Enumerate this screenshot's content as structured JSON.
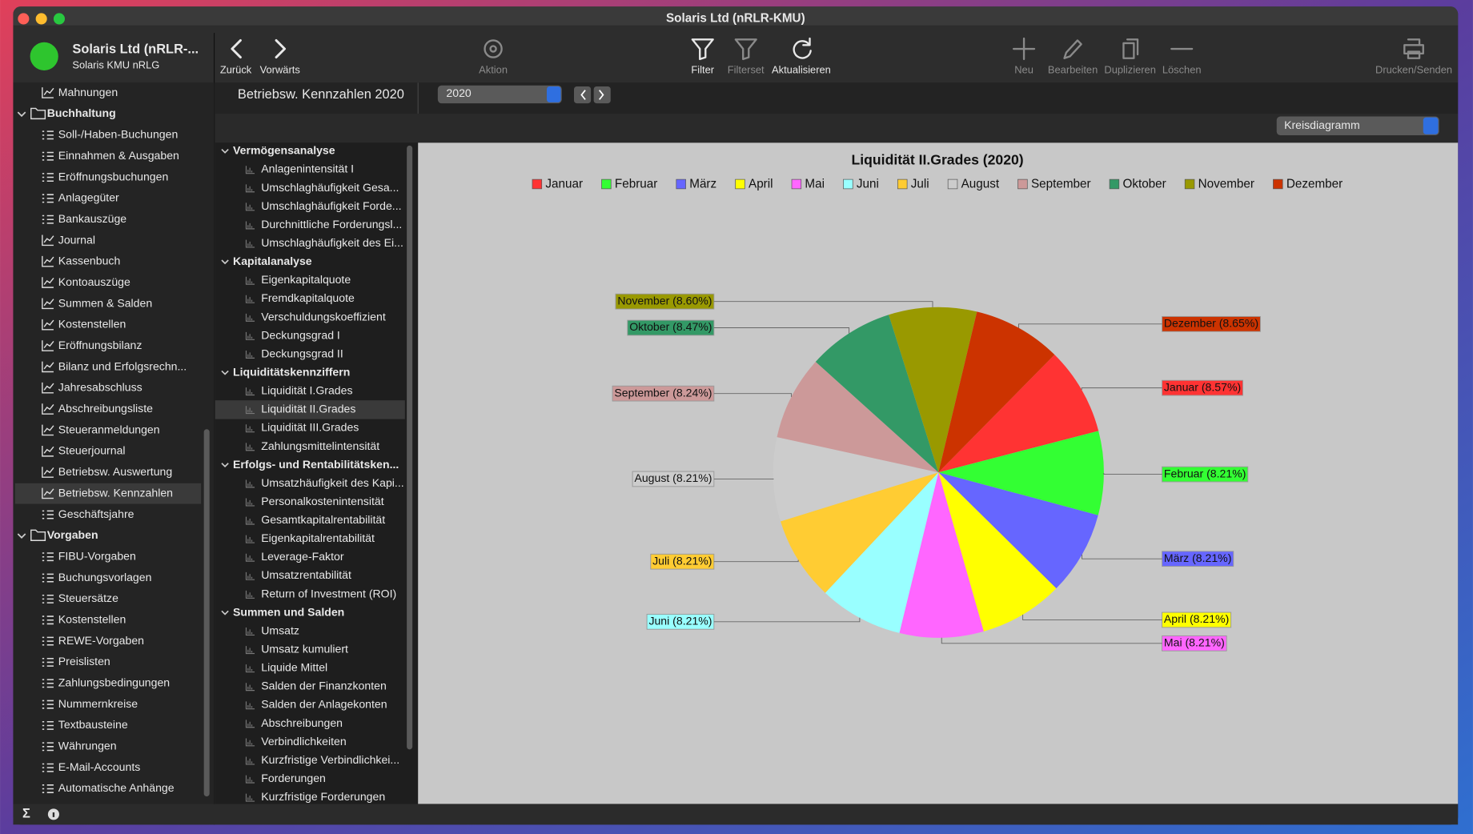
{
  "window": {
    "title": "Solaris Ltd  (nRLR-KMU)"
  },
  "account": {
    "name": "Solaris Ltd  (nRLR-...",
    "subtitle": "Solaris KMU nRLG"
  },
  "toolbar": [
    {
      "label": "Zurück",
      "enabled": true
    },
    {
      "label": "Vorwärts",
      "enabled": true
    },
    {
      "label": "Aktion",
      "enabled": false
    },
    {
      "label": "Filter",
      "enabled": true
    },
    {
      "label": "Filterset",
      "enabled": false
    },
    {
      "label": "Aktualisieren",
      "enabled": true
    },
    {
      "label": "Neu",
      "enabled": false
    },
    {
      "label": "Bearbeiten",
      "enabled": false
    },
    {
      "label": "Duplizieren",
      "enabled": false
    },
    {
      "label": "Löschen",
      "enabled": false
    },
    {
      "label": "Drucken/Senden",
      "enabled": false
    }
  ],
  "sidebar": {
    "selected": 19,
    "items": [
      {
        "label": "Mahnungen",
        "icon": "chart"
      },
      {
        "label": "Buchhaltung",
        "icon": "folder"
      },
      {
        "label": "Soll-/Haben-Buchungen",
        "icon": "list"
      },
      {
        "label": "Einnahmen & Ausgaben",
        "icon": "list"
      },
      {
        "label": "Eröffnungsbuchungen",
        "icon": "list"
      },
      {
        "label": "Anlagegüter",
        "icon": "list"
      },
      {
        "label": "Bankauszüge",
        "icon": "list"
      },
      {
        "label": "Journal",
        "icon": "chart"
      },
      {
        "label": "Kassenbuch",
        "icon": "chart"
      },
      {
        "label": "Kontoauszüge",
        "icon": "chart"
      },
      {
        "label": "Summen & Salden",
        "icon": "chart"
      },
      {
        "label": "Kostenstellen",
        "icon": "chart"
      },
      {
        "label": "Eröffnungsbilanz",
        "icon": "chart"
      },
      {
        "label": "Bilanz und Erfolgsrechn...",
        "icon": "chart"
      },
      {
        "label": "Jahresabschluss",
        "icon": "chart"
      },
      {
        "label": "Abschreibungsliste",
        "icon": "chart"
      },
      {
        "label": "Steueranmeldungen",
        "icon": "chart"
      },
      {
        "label": "Steuerjournal",
        "icon": "chart"
      },
      {
        "label": "Betriebsw. Auswertung",
        "icon": "chart"
      },
      {
        "label": "Betriebsw. Kennzahlen",
        "icon": "chart"
      },
      {
        "label": "Geschäftsjahre",
        "icon": "list"
      },
      {
        "label": "Vorgaben",
        "icon": "folder"
      },
      {
        "label": "FIBU-Vorgaben",
        "icon": "list"
      },
      {
        "label": "Buchungsvorlagen",
        "icon": "list"
      },
      {
        "label": "Steuersätze",
        "icon": "list"
      },
      {
        "label": "Kostenstellen",
        "icon": "list"
      },
      {
        "label": "REWE-Vorgaben",
        "icon": "list"
      },
      {
        "label": "Preislisten",
        "icon": "list"
      },
      {
        "label": "Zahlungsbedingungen",
        "icon": "list"
      },
      {
        "label": "Nummernkreise",
        "icon": "list"
      },
      {
        "label": "Textbausteine",
        "icon": "list"
      },
      {
        "label": "Währungen",
        "icon": "list"
      },
      {
        "label": "E-Mail-Accounts",
        "icon": "list"
      },
      {
        "label": "Automatische Anhänge",
        "icon": "list"
      }
    ]
  },
  "header": {
    "title": "Betriebsw. Kennzahlen 2020",
    "year": "2020",
    "chart_kind": "Kreisdiagramm"
  },
  "tree": {
    "selected": [
      2,
      1
    ],
    "groups": [
      {
        "label": "Vermögensanalyse",
        "items": [
          "Anlagenintensität I",
          "Umschlaghäufigkeit Gesa...",
          "Umschlaghäufigkeit Forde...",
          "Durchnittliche Forderungsl...",
          "Umschlaghäufigkeit des Ei..."
        ]
      },
      {
        "label": "Kapitalanalyse",
        "items": [
          "Eigenkapitalquote",
          "Fremdkapitalquote",
          "Verschuldungskoeffizient",
          "Deckungsgrad I",
          "Deckungsgrad II"
        ]
      },
      {
        "label": "Liquiditätskennziffern",
        "items": [
          "Liquidität I.Grades",
          "Liquidität II.Grades",
          "Liquidität III.Grades",
          "Zahlungsmittelintensität"
        ]
      },
      {
        "label": "Erfolgs- und Rentabilitätsken...",
        "items": [
          "Umsatzhäufigkeit des Kapi...",
          "Personalkostenintensität",
          "Gesamtkapitalrentabilität",
          "Eigenkapitalrentabilität",
          "Leverage-Faktor",
          "Umsatzrentabilität",
          "Return of Investment (ROI)"
        ]
      },
      {
        "label": "Summen und Salden",
        "items": [
          "Umsatz",
          "Umsatz kumuliert",
          "Liquide Mittel",
          "Salden der Finanzkonten",
          "Salden der Anlagekonten",
          "Abschreibungen",
          "Verbindlichkeiten",
          "Kurzfristige Verbindlichkei...",
          "Forderungen",
          "Kurzfristige Forderungen"
        ]
      }
    ]
  },
  "chart_data": {
    "type": "pie",
    "title": "Liquidität II.Grades (2020)",
    "legend": "top",
    "categories": [
      "Januar",
      "Februar",
      "März",
      "April",
      "Mai",
      "Juni",
      "Juli",
      "August",
      "September",
      "Oktober",
      "November",
      "Dezember"
    ],
    "values": [
      8.57,
      8.21,
      8.21,
      8.21,
      8.21,
      8.21,
      8.21,
      8.21,
      8.24,
      8.47,
      8.6,
      8.65
    ],
    "value_labels": [
      "Januar (8.57%)",
      "Februar (8.21%)",
      "März (8.21%)",
      "April (8.21%)",
      "Mai (8.21%)",
      "Juni (8.21%)",
      "Juli (8.21%)",
      "August (8.21%)",
      "September (8.24%)",
      "Oktober (8.47%)",
      "November (8.60%)",
      "Dezember (8.65%)"
    ],
    "colors": [
      "#ff3333",
      "#33ff33",
      "#6666ff",
      "#ffff00",
      "#ff66ff",
      "#99ffff",
      "#ffcc33",
      "#cccccc",
      "#cc9999",
      "#339966",
      "#999900",
      "#cc3300"
    ]
  }
}
